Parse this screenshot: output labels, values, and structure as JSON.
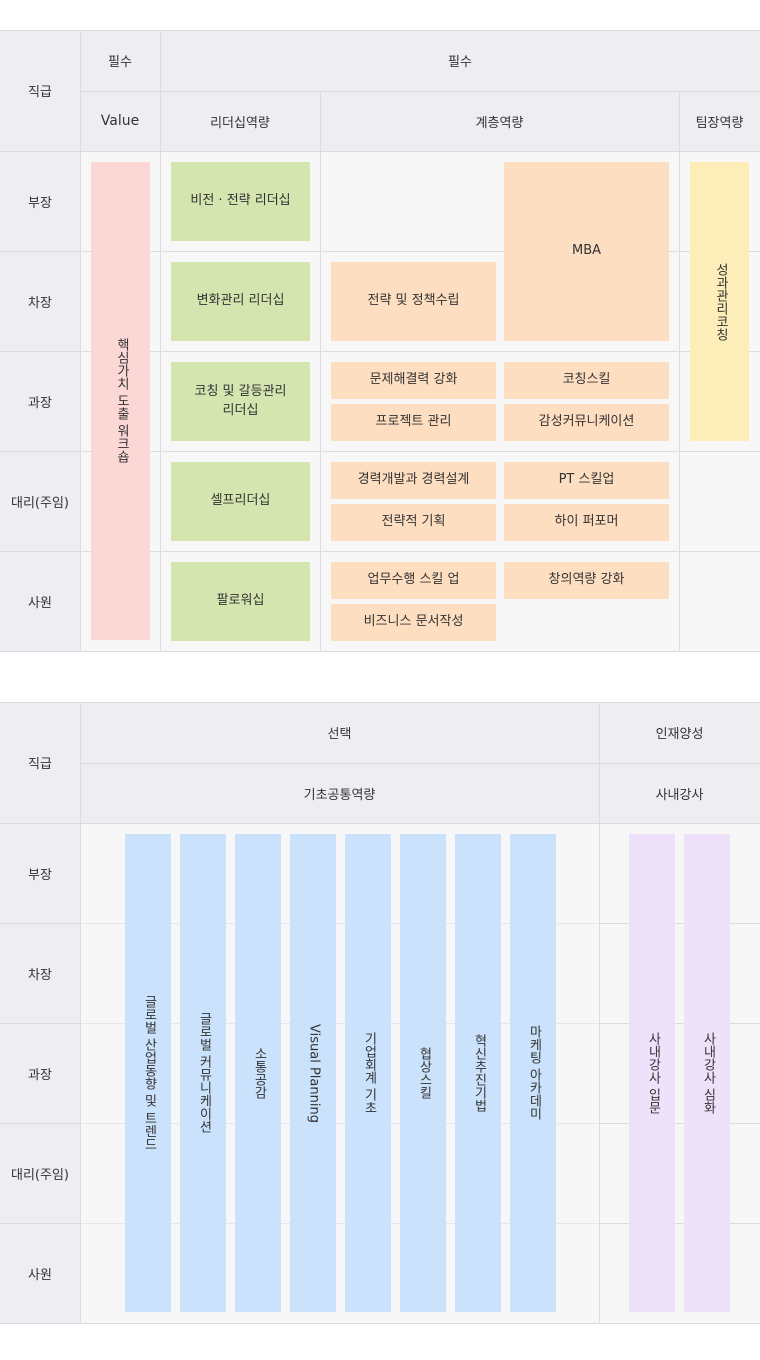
{
  "table1": {
    "header": {
      "rank": "직급",
      "required_a": "필수",
      "required_b": "필수",
      "value": "Value",
      "leadership": "리더십역량",
      "hierarchy": "계층역량",
      "team": "팀장역량"
    },
    "ranks": [
      "부장",
      "차장",
      "과장",
      "대리(주임)",
      "사원"
    ],
    "value_course": "핵심가치 도출 워크숍",
    "leadership_courses": [
      "비전 · 전략 리더십",
      "변화관리 리더십",
      "코칭 및 갈등관리\n리더십",
      "셀프리더십",
      "팔로워십"
    ],
    "hierarchy_courses": {
      "mba": "MBA",
      "strategy": "전략 및 정책수립",
      "problem": "문제해결력 강화",
      "coaching": "코칭스킬",
      "project": "프로젝트 관리",
      "emotion": "감성커뮤니케이션",
      "career": "경력개발과 경력설계",
      "pt": "PT 스킬업",
      "strategic_plan": "전략적 기획",
      "high": "하이 퍼포머",
      "work": "업무수행 스킬 업",
      "creative": "창의역량 강화",
      "business": "비즈니스 문서작성"
    },
    "team_course": "성과관리코칭"
  },
  "table2": {
    "header": {
      "rank": "직급",
      "optional": "선택",
      "talent": "인재양성",
      "basic": "기초공통역량",
      "instructor": "사내강사"
    },
    "ranks": [
      "부장",
      "차장",
      "과장",
      "대리(주임)",
      "사원"
    ],
    "basic_courses": [
      "글로벌 산업동향 및 트렌드",
      "글로벌 커뮤니케이션",
      "소통공감",
      "Visual Planning",
      "기업회계 기초",
      "협상스킬",
      "혁신추진기법",
      "마케팅 아카데미"
    ],
    "instructor_courses": [
      "사내강사 입문",
      "사내강사 심화"
    ]
  }
}
